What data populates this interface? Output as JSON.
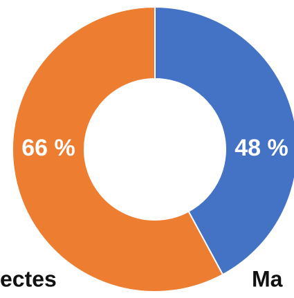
{
  "chart_data": {
    "type": "donut",
    "categories": [
      "Ma",
      "ectes"
    ],
    "values": [
      48,
      66
    ],
    "value_labels": [
      "48 %",
      "66 %"
    ],
    "colors": [
      "#4472c4",
      "#ed7d31"
    ]
  }
}
